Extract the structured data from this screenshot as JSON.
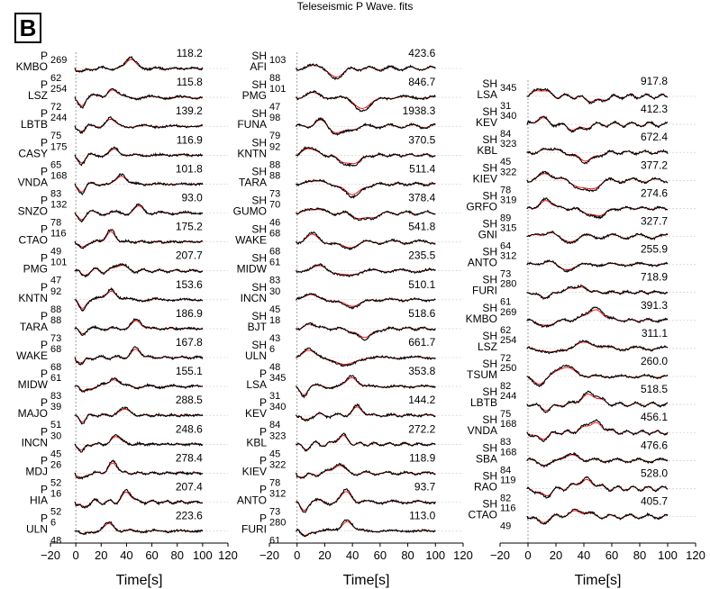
{
  "title": "Teleseismic P Wave. fits",
  "panel_label": "B",
  "chart_data": {
    "type": "line",
    "title": "Teleseismic P Wave. fits",
    "xlabel": "Time[s]",
    "xlim": [
      -20,
      120
    ],
    "xticks": [
      -20,
      0,
      20,
      40,
      60,
      80,
      100,
      120
    ],
    "x_tick_labels": [
      "−20",
      "0",
      "20",
      "40",
      "60",
      "80",
      "100",
      "120"
    ],
    "series_colors": {
      "observed": "#000000",
      "synthetic": "#ff0000"
    },
    "columns": [
      {
        "traces": [
          {
            "phase": "P",
            "station": "KMBO",
            "azimuth": "269",
            "distance": "62",
            "amplitude": "118.2"
          },
          {
            "phase": "P",
            "station": "LSZ",
            "azimuth": "254",
            "distance": "72",
            "amplitude": "115.8"
          },
          {
            "phase": "P",
            "station": "LBTB",
            "azimuth": "244",
            "distance": "75",
            "amplitude": "139.2"
          },
          {
            "phase": "P",
            "station": "CASY",
            "azimuth": "175",
            "distance": "65",
            "amplitude": "116.9"
          },
          {
            "phase": "P",
            "station": "VNDA",
            "azimuth": "168",
            "distance": "83",
            "amplitude": "101.8"
          },
          {
            "phase": "P",
            "station": "SNZO",
            "azimuth": "132",
            "distance": "78",
            "amplitude": "93.0"
          },
          {
            "phase": "P",
            "station": "CTAO",
            "azimuth": "116",
            "distance": "49",
            "amplitude": "175.2"
          },
          {
            "phase": "P",
            "station": "PMG",
            "azimuth": "101",
            "distance": "47",
            "amplitude": "207.7"
          },
          {
            "phase": "P",
            "station": "KNTN",
            "azimuth": "92",
            "distance": "88",
            "amplitude": "153.6"
          },
          {
            "phase": "P",
            "station": "TARA",
            "azimuth": "88",
            "distance": "73",
            "amplitude": "186.9"
          },
          {
            "phase": "P",
            "station": "WAKE",
            "azimuth": "68",
            "distance": "68",
            "amplitude": "167.8"
          },
          {
            "phase": "P",
            "station": "MIDW",
            "azimuth": "61",
            "distance": "83",
            "amplitude": "155.1"
          },
          {
            "phase": "P",
            "station": "MAJO",
            "azimuth": "39",
            "distance": "51",
            "amplitude": "288.5"
          },
          {
            "phase": "P",
            "station": "INCN",
            "azimuth": "30",
            "distance": "45",
            "amplitude": "248.6"
          },
          {
            "phase": "P",
            "station": "MDJ",
            "azimuth": "26",
            "distance": "52",
            "amplitude": "278.4"
          },
          {
            "phase": "P",
            "station": "HIA",
            "azimuth": "16",
            "distance": "52",
            "amplitude": "207.4"
          },
          {
            "phase": "P",
            "station": "ULN",
            "azimuth": "6",
            "distance": "48",
            "amplitude": "223.6"
          }
        ]
      },
      {
        "traces": [
          {
            "phase": "SH",
            "station": "AFI",
            "azimuth": "103",
            "distance": "88",
            "amplitude": "423.6"
          },
          {
            "phase": "SH",
            "station": "PMG",
            "azimuth": "101",
            "distance": "47",
            "amplitude": "846.7"
          },
          {
            "phase": "SH",
            "station": "FUNA",
            "azimuth": "98",
            "distance": "79",
            "amplitude": "1938.3"
          },
          {
            "phase": "SH",
            "station": "KNTN",
            "azimuth": "92",
            "distance": "88",
            "amplitude": "370.5"
          },
          {
            "phase": "SH",
            "station": "TARA",
            "azimuth": "88",
            "distance": "73",
            "amplitude": "511.4"
          },
          {
            "phase": "SH",
            "station": "GUMO",
            "azimuth": "70",
            "distance": "46",
            "amplitude": "378.4"
          },
          {
            "phase": "SH",
            "station": "WAKE",
            "azimuth": "68",
            "distance": "68",
            "amplitude": "541.8"
          },
          {
            "phase": "SH",
            "station": "MIDW",
            "azimuth": "61",
            "distance": "83",
            "amplitude": "235.5"
          },
          {
            "phase": "SH",
            "station": "INCN",
            "azimuth": "30",
            "distance": "45",
            "amplitude": "510.1"
          },
          {
            "phase": "SH",
            "station": "BJT",
            "azimuth": "18",
            "distance": "43",
            "amplitude": "518.6"
          },
          {
            "phase": "SH",
            "station": "ULN",
            "azimuth": "6",
            "distance": "48",
            "amplitude": "661.7"
          },
          {
            "phase": "P",
            "station": "LSA",
            "azimuth": "345",
            "distance": "31",
            "amplitude": "353.8"
          },
          {
            "phase": "P",
            "station": "KEV",
            "azimuth": "340",
            "distance": "84",
            "amplitude": "144.2"
          },
          {
            "phase": "P",
            "station": "KBL",
            "azimuth": "323",
            "distance": "45",
            "amplitude": "272.2"
          },
          {
            "phase": "P",
            "station": "KIEV",
            "azimuth": "322",
            "distance": "78",
            "amplitude": "118.9"
          },
          {
            "phase": "P",
            "station": "ANTO",
            "azimuth": "312",
            "distance": "73",
            "amplitude": "93.7"
          },
          {
            "phase": "P",
            "station": "FURI",
            "azimuth": "280",
            "distance": "61",
            "amplitude": "113.0"
          }
        ]
      },
      {
        "traces": [
          {
            "phase": "SH",
            "station": "LSA",
            "azimuth": "345",
            "distance": "31",
            "amplitude": "917.8"
          },
          {
            "phase": "SH",
            "station": "KEV",
            "azimuth": "340",
            "distance": "84",
            "amplitude": "412.3"
          },
          {
            "phase": "SH",
            "station": "KBL",
            "azimuth": "323",
            "distance": "45",
            "amplitude": "672.4"
          },
          {
            "phase": "SH",
            "station": "KIEV",
            "azimuth": "322",
            "distance": "78",
            "amplitude": "377.2"
          },
          {
            "phase": "SH",
            "station": "GRFO",
            "azimuth": "319",
            "distance": "89",
            "amplitude": "274.6"
          },
          {
            "phase": "SH",
            "station": "GNI",
            "azimuth": "315",
            "distance": "64",
            "amplitude": "327.7"
          },
          {
            "phase": "SH",
            "station": "ANTO",
            "azimuth": "312",
            "distance": "73",
            "amplitude": "255.9"
          },
          {
            "phase": "SH",
            "station": "FURI",
            "azimuth": "280",
            "distance": "61",
            "amplitude": "718.9"
          },
          {
            "phase": "SH",
            "station": "KMBO",
            "azimuth": "269",
            "distance": "62",
            "amplitude": "391.3"
          },
          {
            "phase": "SH",
            "station": "LSZ",
            "azimuth": "254",
            "distance": "72",
            "amplitude": "311.1"
          },
          {
            "phase": "SH",
            "station": "TSUM",
            "azimuth": "250",
            "distance": "82",
            "amplitude": "260.0"
          },
          {
            "phase": "SH",
            "station": "LBTB",
            "azimuth": "244",
            "distance": "75",
            "amplitude": "518.5"
          },
          {
            "phase": "SH",
            "station": "VNDA",
            "azimuth": "168",
            "distance": "83",
            "amplitude": "456.1"
          },
          {
            "phase": "SH",
            "station": "SBA",
            "azimuth": "168",
            "distance": "84",
            "amplitude": "476.6"
          },
          {
            "phase": "SH",
            "station": "RAO",
            "azimuth": "119",
            "distance": "82",
            "amplitude": "528.0"
          },
          {
            "phase": "SH",
            "station": "CTAO",
            "azimuth": "116",
            "distance": "49",
            "amplitude": "405.7"
          }
        ]
      }
    ]
  }
}
